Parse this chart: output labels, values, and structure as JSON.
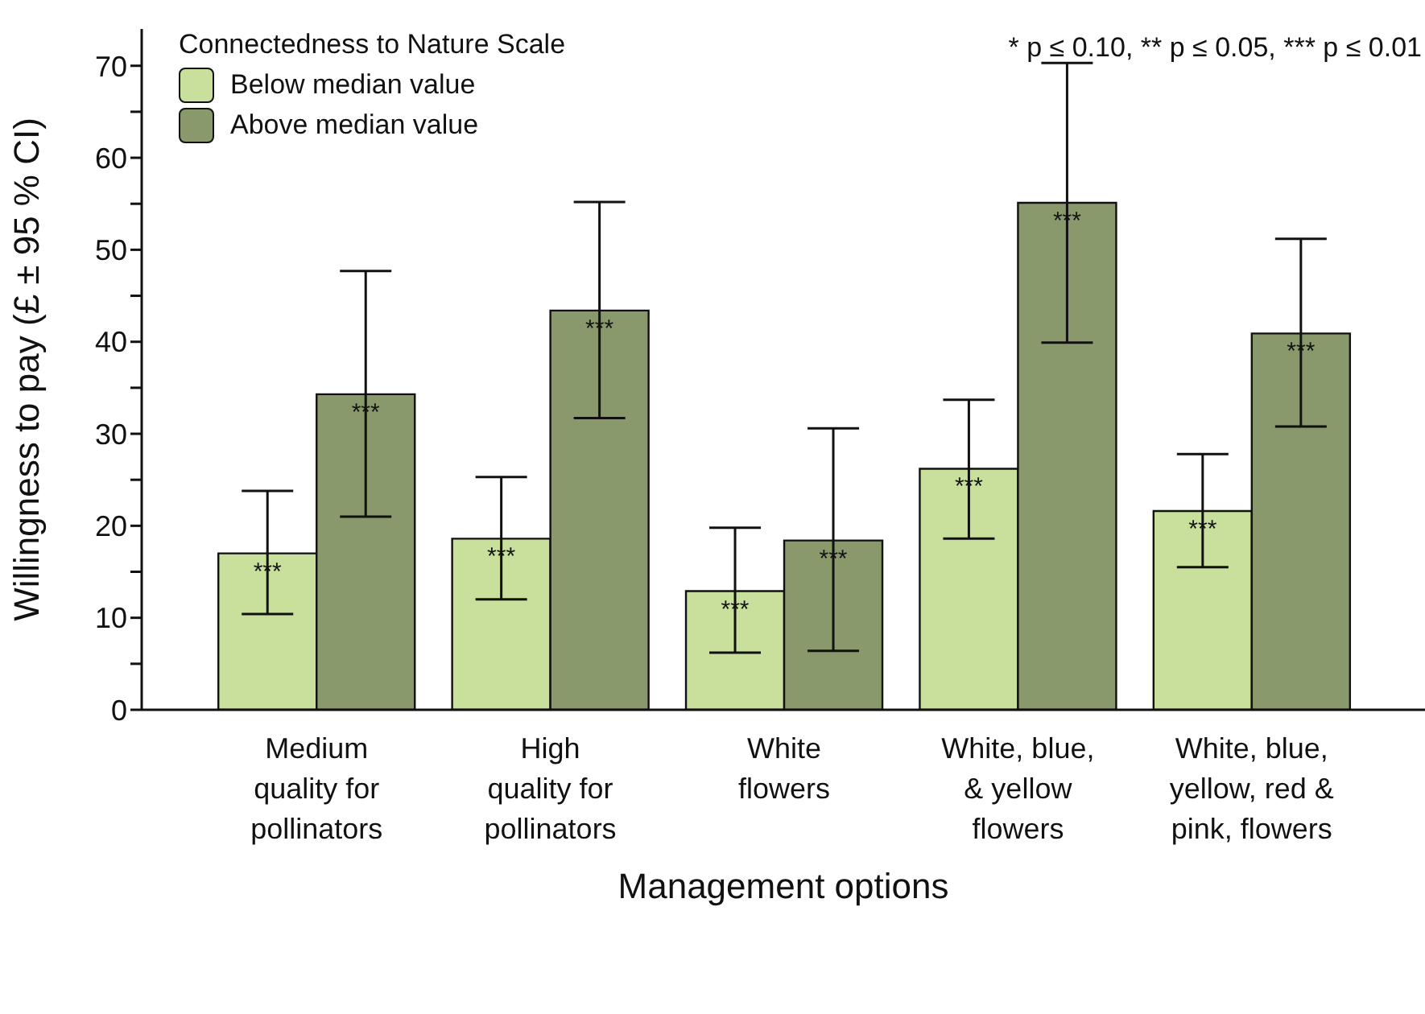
{
  "chart_data": {
    "type": "bar",
    "categories": [
      "Medium\nquality for\npollinators",
      "High\nquality for\npollinators",
      "White\nflowers",
      "White, blue,\n& yellow\nflowers",
      "White, blue,\nyellow, red &\npink, flowers"
    ],
    "xlabel": "Management options",
    "ylabel": "Willingness to pay (£ ± 95 % CI)",
    "legend_title": "Connectedness to Nature Scale",
    "annotations": [
      "* p ≤ 0.10, ** p ≤ 0.05, *** p ≤ 0.01"
    ],
    "series": [
      {
        "name": "Below median value",
        "color": "#c8e09c",
        "values": [
          17.0,
          18.6,
          12.9,
          26.2,
          21.6
        ],
        "errors": [
          [
            10.4,
            23.8
          ],
          [
            12.0,
            25.3
          ],
          [
            6.2,
            19.8
          ],
          [
            18.6,
            33.7
          ],
          [
            15.5,
            27.8
          ]
        ],
        "value_labels": [
          "***",
          "***",
          "***",
          "***",
          "***"
        ]
      },
      {
        "name": "Above median value",
        "color": "#8a996c",
        "values": [
          34.3,
          43.4,
          18.4,
          55.1,
          40.9
        ],
        "errors": [
          [
            21.0,
            47.7
          ],
          [
            31.7,
            55.2
          ],
          [
            6.4,
            30.6
          ],
          [
            39.9,
            70.3
          ],
          [
            30.8,
            51.2
          ]
        ],
        "value_labels": [
          "***",
          "***",
          "***",
          "***",
          "***"
        ]
      }
    ],
    "ylim": [
      0,
      74
    ],
    "yticks": [
      0,
      {
        "value": 5,
        "label": null
      },
      10,
      {
        "value": 15,
        "label": null
      },
      20,
      {
        "value": 25,
        "label": null
      },
      30,
      {
        "value": 35,
        "label": null
      },
      40,
      {
        "value": 45,
        "label": null
      },
      50,
      {
        "value": 55,
        "label": null
      },
      60,
      {
        "value": 65,
        "label": null
      },
      70
    ],
    "grid": false,
    "legend": "top left"
  }
}
